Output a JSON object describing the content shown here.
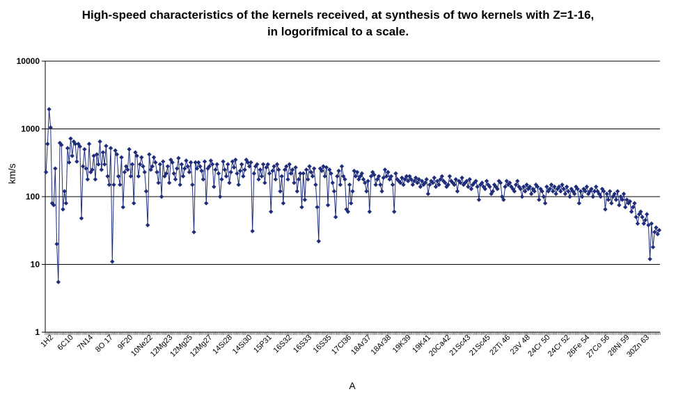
{
  "chart_data": {
    "type": "line",
    "title_line1": "High-speed characteristics of the kernels received, at synthesis of two kernels with Z=1-16,",
    "title_line2": "in logorifmical to a scale.",
    "xlabel": "A",
    "ylabel": "km/s",
    "y_scale": "log",
    "ylim": [
      1,
      10000
    ],
    "y_ticks": [
      "1",
      "10",
      "100",
      "1000",
      "10000"
    ],
    "grid": "horizontal",
    "legend": "none",
    "marker": "diamond",
    "series_color": "#1f2d7a",
    "x_tick_labels": [
      "1H2",
      "6C10",
      "7N14",
      "8O 17",
      "9F20",
      "10Ne22",
      "12Mg23",
      "12Mg25",
      "12Mg27",
      "14Si28",
      "14Si30",
      "15P31",
      "16S32",
      "16S33",
      "16S35",
      "17Cl36",
      "18Ar37",
      "18Ar38",
      "19K39",
      "19K41",
      "20Ca42",
      "21Sc43",
      "21Sc45",
      "22Ti 46",
      "23V 48",
      "24Cr 50",
      "24Cr 52",
      "26Fe 54",
      "27Co 56",
      "28Ni 59",
      "30Zn 63"
    ],
    "values": [
      230,
      600,
      1950,
      1050,
      80,
      75,
      260,
      20,
      5.5,
      620,
      580,
      65,
      120,
      80,
      520,
      320,
      720,
      400,
      650,
      600,
      330,
      600,
      550,
      48,
      280,
      500,
      260,
      180,
      600,
      230,
      250,
      400,
      180,
      420,
      300,
      650,
      250,
      450,
      300,
      560,
      200,
      150,
      520,
      11,
      150,
      480,
      420,
      200,
      150,
      380,
      70,
      230,
      280,
      250,
      500,
      200,
      300,
      80,
      450,
      400,
      200,
      300,
      380,
      280,
      230,
      120,
      38,
      420,
      250,
      280,
      380,
      320,
      230,
      160,
      300,
      100,
      330,
      200,
      220,
      280,
      160,
      350,
      320,
      220,
      180,
      260,
      370,
      150,
      300,
      200,
      260,
      340,
      280,
      230,
      320,
      150,
      30,
      320,
      260,
      320,
      280,
      240,
      180,
      330,
      80,
      260,
      280,
      340,
      300,
      140,
      250,
      300,
      220,
      100,
      180,
      330,
      250,
      200,
      300,
      160,
      230,
      330,
      270,
      350,
      220,
      150,
      240,
      300,
      200,
      250,
      350,
      320,
      280,
      320,
      31,
      220,
      280,
      300,
      180,
      250,
      200,
      300,
      160,
      270,
      300,
      220,
      60,
      240,
      280,
      180,
      300,
      250,
      120,
      200,
      80,
      250,
      280,
      180,
      300,
      220,
      250,
      160,
      270,
      120,
      180,
      220,
      70,
      220,
      90,
      250,
      180,
      280,
      230,
      200,
      260,
      150,
      70,
      22,
      260,
      240,
      280,
      200,
      270,
      75,
      250,
      220,
      160,
      120,
      50,
      200,
      240,
      150,
      280,
      200,
      180,
      65,
      60,
      150,
      80,
      120,
      240,
      200,
      230,
      180,
      200,
      220,
      180,
      160,
      120,
      170,
      60,
      200,
      230,
      210,
      150,
      180,
      200,
      150,
      120,
      190,
      250,
      200,
      230,
      180,
      200,
      150,
      60,
      220,
      180,
      170,
      160,
      190,
      150,
      180,
      200,
      170,
      200,
      180,
      150,
      170,
      190,
      160,
      180,
      140,
      170,
      150,
      160,
      180,
      110,
      150,
      170,
      160,
      190,
      140,
      170,
      150,
      180,
      200,
      170,
      160,
      140,
      150,
      200,
      170,
      160,
      150,
      180,
      120,
      170,
      160,
      190,
      150,
      160,
      170,
      140,
      180,
      130,
      150,
      160,
      170,
      140,
      90,
      150,
      160,
      140,
      130,
      170,
      150,
      140,
      110,
      120,
      150,
      140,
      130,
      170,
      160,
      100,
      90,
      140,
      170,
      150,
      160,
      140,
      130,
      120,
      150,
      170,
      140,
      130,
      100,
      140,
      120,
      150,
      130,
      140,
      110,
      130,
      120,
      150,
      140,
      90,
      130,
      120,
      100,
      80,
      140,
      120,
      130,
      150,
      120,
      140,
      110,
      130,
      140,
      120,
      150,
      130,
      110,
      140,
      120,
      100,
      130,
      120,
      110,
      140,
      130,
      80,
      120,
      100,
      130,
      120,
      140,
      110,
      120,
      130,
      100,
      120,
      140,
      120,
      110,
      100,
      130,
      120,
      65,
      110,
      90,
      120,
      80,
      100,
      110,
      90,
      120,
      75,
      100,
      90,
      110,
      70,
      90,
      80,
      85,
      60,
      70,
      80,
      50,
      40,
      55,
      60,
      50,
      40,
      45,
      55,
      38,
      12,
      40,
      18,
      30,
      35,
      28,
      32
    ]
  }
}
